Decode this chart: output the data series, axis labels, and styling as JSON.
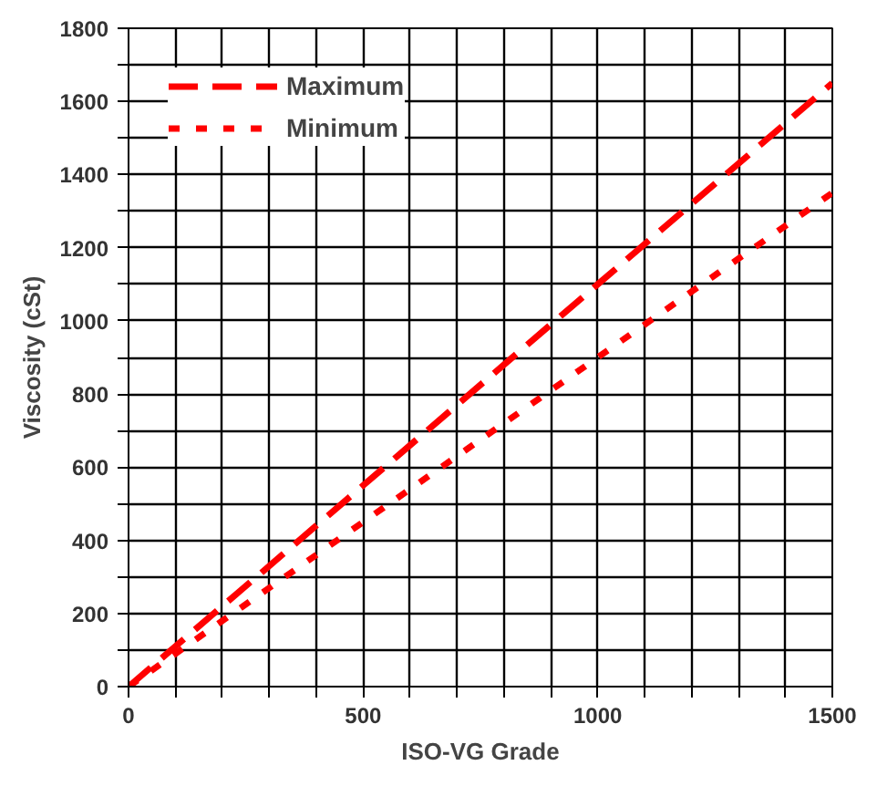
{
  "chart_data": {
    "type": "line",
    "xlabel": "ISO-VG Grade",
    "ylabel": "Viscosity (cSt)",
    "x": [
      0,
      500,
      1000,
      1500
    ],
    "series": [
      {
        "name": "Maximum",
        "color": "#ff0000",
        "line_style": "dashed",
        "values": [
          0,
          550,
          1100,
          1650
        ]
      },
      {
        "name": "Minimum",
        "color": "#ff0000",
        "line_style": "dotted",
        "values": [
          0,
          450,
          900,
          1350
        ]
      }
    ],
    "xlim": [
      0,
      1500
    ],
    "ylim": [
      0,
      1800
    ],
    "xticks": [
      0,
      {
        "value": 100,
        "label": null
      },
      {
        "value": 200,
        "label": null
      },
      {
        "value": 300,
        "label": null
      },
      {
        "value": 400,
        "label": null
      },
      500,
      {
        "value": 600,
        "label": null
      },
      {
        "value": 700,
        "label": null
      },
      {
        "value": 800,
        "label": null
      },
      {
        "value": 900,
        "label": null
      },
      1000,
      {
        "value": 1100,
        "label": null
      },
      {
        "value": 1200,
        "label": null
      },
      {
        "value": 1300,
        "label": null
      },
      {
        "value": 1400,
        "label": null
      },
      1500
    ],
    "yticks": [
      0,
      {
        "value": 100,
        "label": null
      },
      200,
      {
        "value": 300,
        "label": null
      },
      400,
      {
        "value": 500,
        "label": null
      },
      600,
      {
        "value": 700,
        "label": null
      },
      800,
      {
        "value": 900,
        "label": null
      },
      1000,
      {
        "value": 1100,
        "label": null
      },
      1200,
      {
        "value": 1300,
        "label": null
      },
      1400,
      {
        "value": 1500,
        "label": null
      },
      1600,
      {
        "value": 1700,
        "label": null
      },
      1800
    ],
    "grid": true,
    "legend": "top left",
    "marker": "none"
  }
}
